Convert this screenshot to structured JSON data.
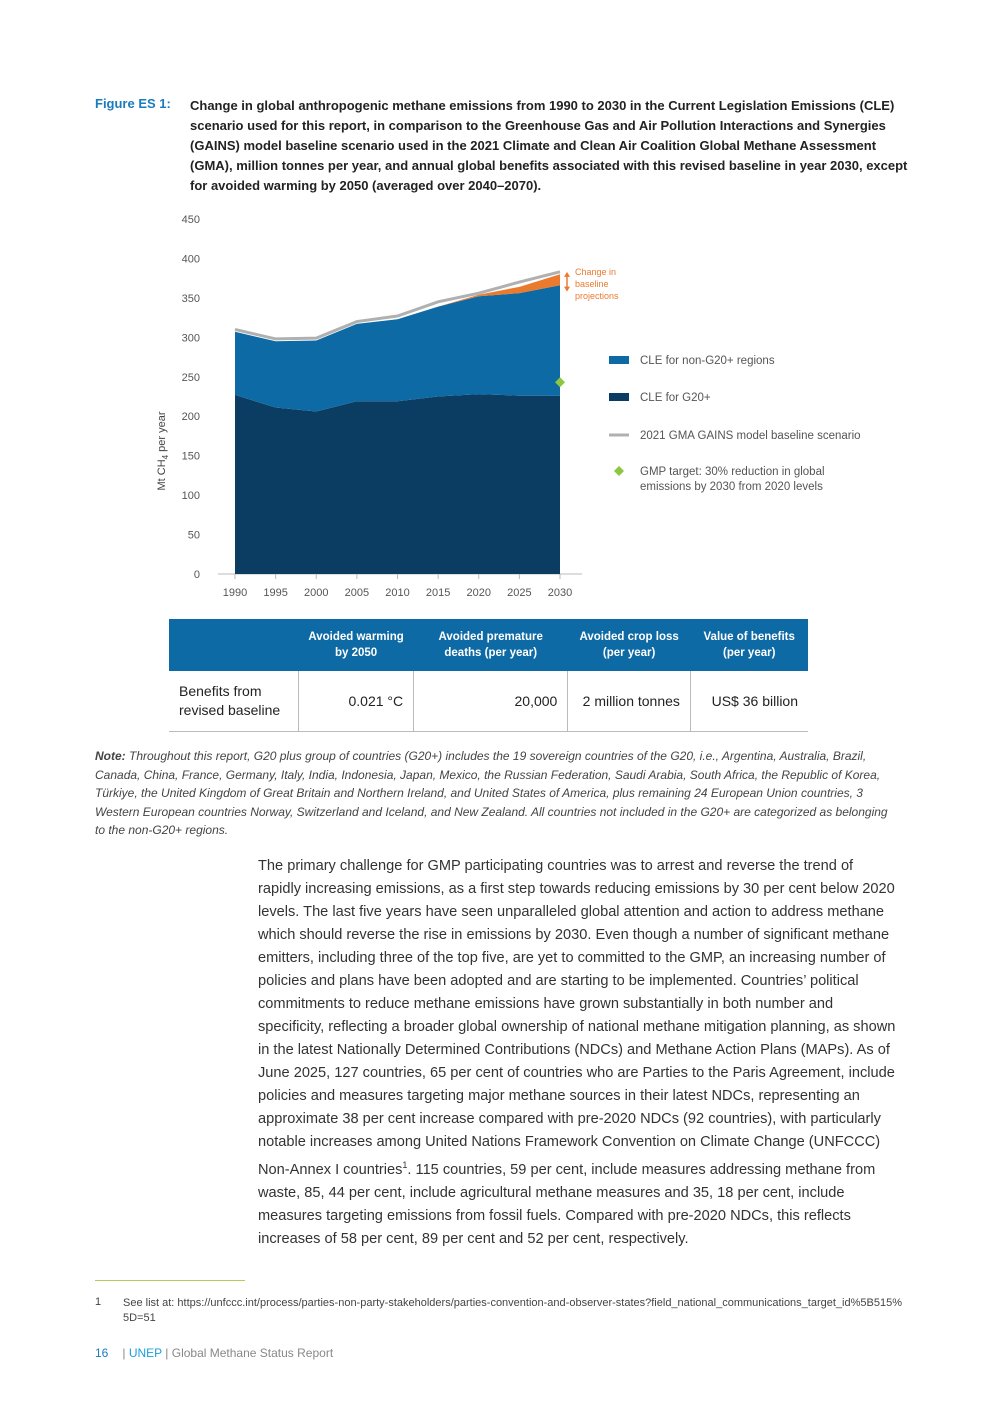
{
  "figure": {
    "label": "Figure ES 1:",
    "caption": "Change in global anthropogenic methane emissions from 1990 to 2030 in the Current Legislation Emissions (CLE) scenario used for this report, in comparison to the Greenhouse Gas and Air Pollution Interactions and Synergies (GAINS) model baseline scenario used in the 2021 Climate and Clean Air Coalition Global Methane Assessment (GMA), million tonnes per year, and annual global benefits associated with this revised baseline in year 2030, except for avoided warming by 2050 (averaged over 2040–2070)."
  },
  "chart_data": {
    "type": "area",
    "x": [
      1990,
      1995,
      2000,
      2005,
      2010,
      2015,
      2020,
      2025,
      2030
    ],
    "ylabel_main": "Mt CH",
    "ylabel_sub": "4",
    "ylabel_tail": " per year",
    "ylim": [
      0,
      450
    ],
    "yticks": [
      0,
      50,
      100,
      150,
      200,
      250,
      300,
      350,
      400,
      450
    ],
    "series": [
      {
        "name": "CLE for G20+",
        "color": "#0b3d63",
        "values": [
          227,
          211,
          206,
          219,
          219,
          225,
          228,
          226,
          226
        ]
      },
      {
        "name": "CLE for non-G20+ regions",
        "color": "#0e6aa4",
        "values": [
          80,
          84,
          90,
          98,
          104,
          114,
          124,
          130,
          140
        ]
      },
      {
        "name": "Change in baseline projections",
        "color": "#ea7b2e",
        "values": [
          0,
          0,
          0,
          0,
          0,
          0,
          2,
          8,
          14
        ]
      }
    ],
    "baseline": {
      "name": "2021 GMA GAINS model baseline scenario",
      "color": "#b0b0b0",
      "values": [
        310,
        298,
        299,
        320,
        327,
        345,
        356,
        370,
        383
      ]
    },
    "target": {
      "name": "GMP target: 30% reduction in global emissions by 2030 from 2020 levels",
      "color": "#8dc63f",
      "x": 2030,
      "y": 243
    },
    "annotation": [
      "Change in",
      "baseline",
      "projections"
    ],
    "legend": [
      {
        "label": "CLE for non-G20+ regions",
        "kind": "box",
        "color": "#0e6aa4"
      },
      {
        "label": "CLE for G20+",
        "kind": "box",
        "color": "#0b3d63"
      },
      {
        "label": "2021 GMA GAINS model baseline scenario",
        "kind": "line",
        "color": "#b0b0b0"
      },
      {
        "label": [
          "GMP target: 30% reduction in global",
          "emissions by 2030 from 2020 levels"
        ],
        "kind": "diamond",
        "color": "#8dc63f"
      }
    ],
    "legend_position": "right"
  },
  "table": {
    "headers": [
      "",
      "Avoided warming by 2050",
      "Avoided premature deaths (per year)",
      "Avoided crop loss (per year)",
      "Value of benefits (per year)"
    ],
    "row_label": "Benefits from revised baseline",
    "row_values": [
      "0.021 °C",
      "20,000",
      "2 million tonnes",
      "US$ 36 billion"
    ]
  },
  "note": {
    "lead": "Note:",
    "text": " Throughout this report, G20 plus group of countries (G20+) includes the 19 sovereign countries of the G20, i.e., Argentina, Australia, Brazil, Canada, China, France, Germany, Italy, India, Indonesia, Japan, Mexico, the Russian Federation, Saudi Arabia, South Africa, the Republic of Korea, Türkiye, the United Kingdom of Great Britain and Northern Ireland, and United States of America, plus remaining 24 European Union countries, 3 Western European countries Norway, Switzerland and Iceland, and New Zealand. All countries not included in the G20+ are categorized as belonging to the non-G20+ regions."
  },
  "body": {
    "part1": "The primary challenge for GMP participating countries was to arrest and reverse the trend of rapidly increasing emissions, as a first step towards reducing emissions by 30 per cent below 2020 levels. The last five years have seen unparalleled global attention and action to address methane which should reverse the rise in emissions by 2030. Even though a number of significant methane emitters, including three of the top five, are yet to committed to the GMP, an increasing number of policies and plans have been adopted and are starting to be implemented. Countries’ political commitments to reduce methane emissions have grown substantially in both number and specificity, reflecting a broader global ownership of national methane mitigation planning, as shown in the latest Nationally Determined Contributions (NDCs) and Methane Action Plans (MAPs). As of June 2025, 127 countries, 65 per cent of countries who are Parties to the Paris Agreement, include policies and measures targeting major methane sources in their latest NDCs, representing an approximate 38 per cent increase compared with pre-2020 NDCs (92 countries), with particularly notable increases among United Nations Framework Convention on Climate Change (UNFCCC) Non-Annex I countries",
    "sup": "1",
    "part2": ". 115 countries, 59 per cent, include measures addressing methane from waste, 85, 44 per cent, include agricultural methane measures and 35, 18 per cent, include measures targeting emissions from fossil fuels. Compared with pre-2020 NDCs, this reflects increases of 58 per cent, 89 per cent and 52 per cent, respectively."
  },
  "footnote": {
    "num": "1",
    "text": "See list at: https://unfccc.int/process/parties-non-party-stakeholders/parties-convention-and-observer-states?field_national_communications_target_id%5B515%5D=51"
  },
  "footer": {
    "page": "16",
    "sep1": "| ",
    "org": "UNEP",
    "sep2": " | ",
    "title": "Global Methane Status Report"
  }
}
